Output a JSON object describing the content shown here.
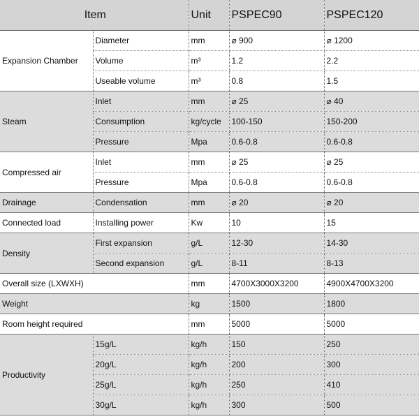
{
  "table": {
    "header": [
      "Item",
      "Unit",
      "PSPEC90",
      "PSPEC120"
    ],
    "groups": [
      {
        "item": "Expansion Chamber",
        "shaded": false,
        "rows": [
          {
            "sub": "Diameter",
            "unit": "mm",
            "values": [
              "⌀ 900",
              "⌀ 1200"
            ]
          },
          {
            "sub": "Volume",
            "unit": "m³",
            "values": [
              "1.2",
              "2.2"
            ]
          },
          {
            "sub": "Useable volume",
            "unit": "m³",
            "values": [
              "0.8",
              "1.5"
            ]
          }
        ]
      },
      {
        "item": "Steam",
        "shaded": true,
        "rows": [
          {
            "sub": "Inlet",
            "unit": "mm",
            "values": [
              "⌀ 25",
              "⌀ 40"
            ]
          },
          {
            "sub": "Consumption",
            "unit": "kg/cycle",
            "values": [
              "100-150",
              "150-200"
            ]
          },
          {
            "sub": "Pressure",
            "unit": "Mpa",
            "values": [
              "0.6-0.8",
              "0.6-0.8"
            ]
          }
        ]
      },
      {
        "item": "Compressed air",
        "shaded": false,
        "rows": [
          {
            "sub": "Inlet",
            "unit": "mm",
            "values": [
              "⌀ 25",
              "⌀ 25"
            ]
          },
          {
            "sub": "Pressure",
            "unit": "Mpa",
            "values": [
              "0.6-0.8",
              "0.6-0.8"
            ]
          }
        ]
      },
      {
        "item": "Drainage",
        "shaded": true,
        "rows": [
          {
            "sub": "Condensation",
            "unit": "mm",
            "values": [
              "⌀ 20",
              "⌀ 20"
            ]
          }
        ]
      },
      {
        "item": "Connected load",
        "shaded": false,
        "rows": [
          {
            "sub": "Installing power",
            "unit": "Kw",
            "values": [
              "10",
              "15"
            ]
          }
        ]
      },
      {
        "item": "Density",
        "shaded": true,
        "rows": [
          {
            "sub": "First expansion",
            "unit": "g/L",
            "values": [
              "12-30",
              "14-30"
            ]
          },
          {
            "sub": "Second expansion",
            "unit": "g/L",
            "values": [
              "8-11",
              "8-13"
            ]
          }
        ]
      },
      {
        "item": "Overall size (LXWXH)",
        "shaded": false,
        "rows": [
          {
            "unit": "mm",
            "values": [
              "4700X3000X3200",
              "4900X4700X3200"
            ]
          }
        ]
      },
      {
        "item": "Weight",
        "shaded": true,
        "rows": [
          {
            "unit": "kg",
            "values": [
              "1500",
              "1800"
            ]
          }
        ]
      },
      {
        "item": "Room height required",
        "shaded": false,
        "rows": [
          {
            "unit": "mm",
            "values": [
              "5000",
              "5000"
            ]
          }
        ]
      },
      {
        "item": "Productivity",
        "shaded": true,
        "rows": [
          {
            "sub": "15g/L",
            "unit": "kg/h",
            "values": [
              "150",
              "250"
            ]
          },
          {
            "sub": "20g/L",
            "unit": "kg/h",
            "values": [
              "200",
              "300"
            ]
          },
          {
            "sub": "25g/L",
            "unit": "kg/h",
            "values": [
              "250",
              "410"
            ]
          },
          {
            "sub": "30g/L",
            "unit": "kg/h",
            "values": [
              "300",
              "500"
            ]
          }
        ]
      }
    ]
  }
}
